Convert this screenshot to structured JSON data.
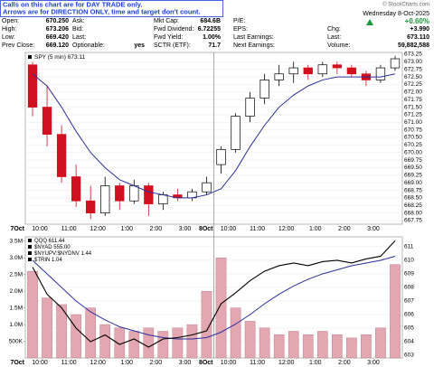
{
  "header": {
    "note": [
      "Calls on this chart are for DAY TRADE only.",
      "Arrows are for DIRECTION ONLY, time and target don't count."
    ],
    "copyright": "© StockCharts.com",
    "date": "Wednesday  8-Oct-2025",
    "change_pct": "+0.60%",
    "quote": [
      [
        [
          "Open:",
          "670.250"
        ],
        [
          "High:",
          "673.206"
        ],
        [
          "Low:",
          "669.420"
        ],
        [
          "Prev Close:",
          "669.120"
        ]
      ],
      [
        [
          "Ask:",
          null
        ],
        [
          "Bid:",
          null
        ],
        [
          "Last:",
          null
        ],
        [
          "Optionable:",
          "yes"
        ]
      ],
      [
        [
          "Mkt Cap:",
          "684.6B"
        ],
        [
          "Fwd Dividend:",
          "6.72255"
        ],
        [
          "Fwd Yield:",
          "1.00%"
        ],
        [
          "SCTR (ETF):",
          "71.7"
        ]
      ],
      [
        [
          "P/E:",
          null
        ],
        [
          "EPS:",
          null
        ],
        [
          "Last Earnings:",
          null
        ],
        [
          "Next Earnings:",
          null
        ]
      ],
      [
        [
          "Chg:",
          "+3.990"
        ],
        [
          "Last:",
          "673.110"
        ],
        [
          "Volume:",
          "59,882,588"
        ]
      ]
    ]
  },
  "chart_data": [
    {
      "type": "candlestick",
      "legend": "SPY (5 min) 673.11",
      "categories": [
        "7Oct",
        "10:00",
        null,
        "11:00",
        null,
        "12:00",
        null,
        "1:00",
        null,
        "2:00",
        null,
        "3:00",
        null,
        "8Oct",
        "10:00",
        null,
        "11:00",
        null,
        "12:00",
        null,
        "1:00",
        null,
        "2:00",
        null,
        "3:00",
        null
      ],
      "open": [
        672.9,
        671.5,
        670.6,
        669.2,
        668.4,
        668.0,
        668.9,
        668.4,
        668.9,
        668.3,
        668.6,
        668.5,
        668.7,
        669.6,
        670.1,
        671.2,
        671.8,
        672.4,
        672.6,
        672.8,
        672.6,
        672.9,
        672.8,
        672.6,
        672.4,
        672.8
      ],
      "high": [
        673.0,
        672.2,
        670.9,
        669.6,
        668.9,
        669.2,
        669.0,
        669.1,
        669.0,
        668.7,
        668.8,
        668.8,
        669.2,
        670.2,
        671.3,
        672.0,
        672.6,
        672.9,
        673.0,
        672.9,
        673.0,
        673.0,
        672.9,
        672.7,
        672.9,
        673.2
      ],
      "low": [
        671.2,
        670.2,
        669.0,
        668.2,
        667.8,
        667.9,
        668.1,
        668.3,
        667.9,
        668.1,
        668.4,
        668.4,
        668.6,
        669.3,
        670.0,
        671.0,
        671.6,
        672.2,
        672.3,
        672.4,
        672.5,
        672.6,
        672.5,
        672.2,
        672.3,
        672.7
      ],
      "close": [
        671.5,
        670.6,
        669.2,
        668.4,
        668.0,
        668.9,
        668.4,
        668.9,
        668.3,
        668.6,
        668.5,
        668.7,
        669.0,
        670.1,
        671.2,
        671.8,
        672.4,
        672.6,
        672.8,
        672.6,
        672.9,
        672.8,
        672.6,
        672.4,
        672.8,
        673.1
      ],
      "ma_values": [
        672.6,
        672.2,
        671.5,
        670.7,
        670.0,
        669.5,
        669.1,
        668.9,
        668.7,
        668.6,
        668.5,
        668.5,
        668.6,
        668.8,
        669.4,
        670.2,
        670.9,
        671.5,
        671.9,
        672.2,
        672.4,
        672.5,
        672.5,
        672.5,
        672.5,
        672.6
      ],
      "up_color": "#000000",
      "down_color": "#d0101e",
      "ma_color": "#2a2f9e",
      "ylim": [
        667.63,
        673.31
      ],
      "yticks": [
        673.25,
        {
          "value": 673,
          "label": "673.00"
        },
        672.75,
        {
          "value": 672.5,
          "label": "672.50"
        },
        672.25,
        {
          "value": 672,
          "label": "672.00"
        },
        671.75,
        {
          "value": 671.5,
          "label": "671.50"
        },
        671.25,
        {
          "value": 671,
          "label": "671.00"
        },
        670.75,
        {
          "value": 670.5,
          "label": "670.50"
        },
        670.25,
        {
          "value": 670,
          "label": "670.00"
        },
        669.75,
        {
          "value": 669.5,
          "label": "669.50"
        },
        669.25,
        {
          "value": 669,
          "label": "669.00"
        },
        668.75,
        {
          "value": 668.5,
          "label": "668.50"
        },
        668.25,
        {
          "value": 668,
          "label": "668.00"
        },
        667.75
      ],
      "grid": true
    },
    {
      "type": "volume_line",
      "legend": [
        "QQQ 611.44",
        "$NYAD 555.00",
        "$NYUPV:$NYDNV 1.44",
        "$TRIN 1.04"
      ],
      "qqq_values": [
        609.5,
        607.5,
        606.5,
        605.0,
        604.0,
        604.5,
        603.8,
        604.2,
        603.6,
        604.2,
        604.3,
        604.5,
        604.8,
        606.8,
        607.6,
        608.5,
        609.2,
        609.6,
        609.8,
        609.6,
        609.9,
        610.0,
        609.8,
        610.1,
        610.3,
        611.44
      ],
      "ma_values": [
        610.0,
        609.0,
        608.0,
        607.0,
        606.2,
        605.6,
        605.1,
        604.8,
        604.5,
        604.3,
        604.2,
        604.2,
        604.3,
        604.7,
        605.3,
        606.0,
        606.8,
        607.5,
        608.1,
        608.6,
        609.0,
        609.3,
        609.6,
        609.8,
        610.0,
        610.3
      ],
      "volume": [
        2600000,
        1800000,
        1600000,
        1300000,
        1500000,
        1000000,
        900000,
        800000,
        900000,
        800000,
        900000,
        1000000,
        2000000,
        3000000,
        1500000,
        1100000,
        900000,
        700000,
        800000,
        700000,
        800000,
        700000,
        600000,
        700000,
        900000,
        2800000
      ],
      "line_color": "#000000",
      "ma_color": "#2a2f9e",
      "volume_color": "#e2a7b0",
      "ylim": [
        602.8,
        611.73
      ],
      "yticks": [
        603,
        604,
        605,
        606,
        607,
        608,
        609,
        610,
        611
      ],
      "y2lim": [
        0,
        3630000
      ],
      "y2ticks": [
        {
          "value": 500000,
          "label": "500K"
        },
        {
          "value": 1000000,
          "label": "1.0M"
        },
        {
          "value": 1500000,
          "label": "1.5M"
        },
        {
          "value": 2000000,
          "label": "2.0M"
        },
        {
          "value": 2500000,
          "label": "2.5M"
        },
        {
          "value": 3000000,
          "label": "3.0M"
        },
        {
          "value": 3500000,
          "label": "3.5M"
        }
      ],
      "grid": true
    }
  ]
}
